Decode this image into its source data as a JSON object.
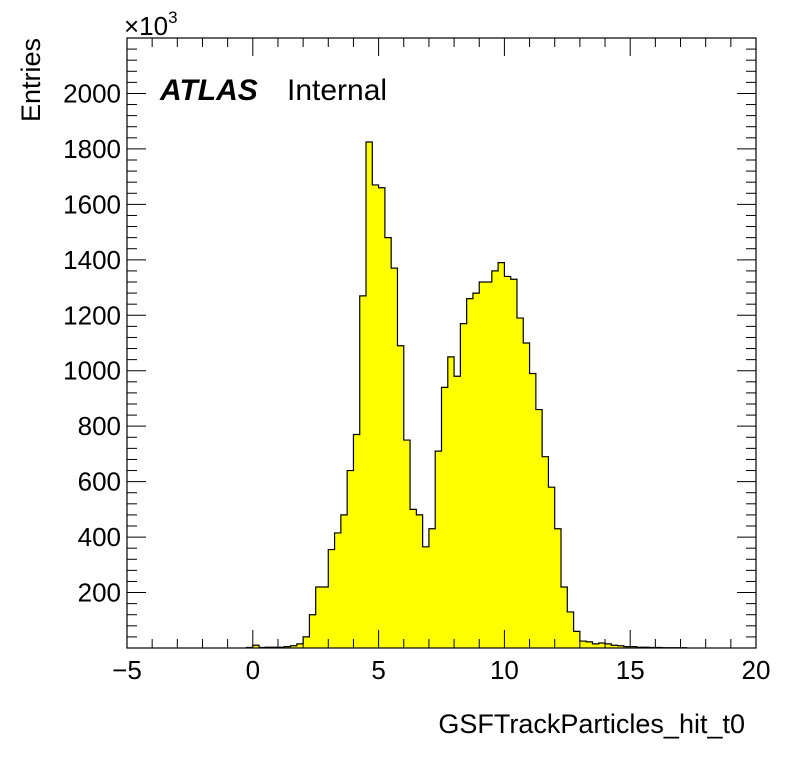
{
  "chart_data": {
    "type": "bar",
    "style": "histogram",
    "fill_color": "#ffff00",
    "line_color": "#000000",
    "xlabel": "GSFTrackParticles_hit_t0",
    "ylabel": "Entries",
    "y_multiplier_base": "×10",
    "y_multiplier_exp": "3",
    "label_atlas": "ATLAS",
    "label_status": "Internal",
    "xlim": [
      -5,
      20
    ],
    "ylim": [
      0,
      2200
    ],
    "x_ticks": [
      -5,
      0,
      5,
      10,
      15,
      20
    ],
    "y_ticks": [
      200,
      400,
      600,
      800,
      1000,
      1200,
      1400,
      1600,
      1800,
      2000
    ],
    "bin_width": 0.25,
    "x": [
      -0.125,
      0.125,
      0.375,
      0.625,
      0.875,
      1.125,
      1.375,
      1.625,
      1.875,
      2.125,
      2.375,
      2.625,
      2.875,
      3.125,
      3.375,
      3.625,
      3.875,
      4.125,
      4.375,
      4.625,
      4.875,
      5.125,
      5.375,
      5.625,
      5.875,
      6.125,
      6.375,
      6.625,
      6.875,
      7.125,
      7.375,
      7.625,
      7.875,
      8.125,
      8.375,
      8.625,
      8.875,
      9.125,
      9.375,
      9.625,
      9.875,
      10.125,
      10.375,
      10.625,
      10.875,
      11.125,
      11.375,
      11.625,
      11.875,
      12.125,
      12.375,
      12.625,
      12.875,
      13.125,
      13.375,
      13.625,
      13.875,
      14.125,
      14.375,
      14.625,
      14.875,
      15.125,
      15.375,
      15.625,
      15.875,
      16.125,
      16.375,
      16.625,
      16.875,
      17.125
    ],
    "values": [
      2,
      10,
      2,
      3,
      3,
      3,
      5,
      8,
      15,
      40,
      120,
      220,
      220,
      355,
      415,
      480,
      640,
      770,
      1270,
      1825,
      1670,
      1660,
      1480,
      1370,
      1090,
      750,
      500,
      480,
      365,
      430,
      710,
      940,
      1050,
      980,
      1170,
      1260,
      1280,
      1320,
      1320,
      1360,
      1390,
      1340,
      1330,
      1190,
      1100,
      990,
      860,
      690,
      580,
      430,
      220,
      130,
      60,
      25,
      22,
      15,
      18,
      15,
      10,
      8,
      5,
      5,
      3,
      3,
      2,
      2,
      1,
      1,
      1,
      1
    ]
  }
}
